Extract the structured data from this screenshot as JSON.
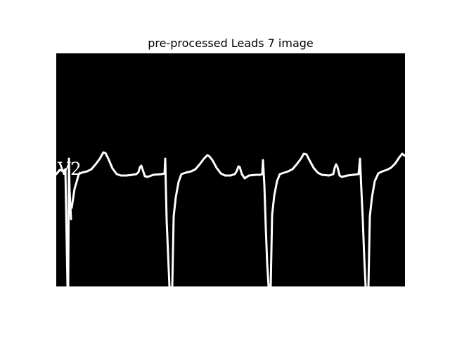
{
  "figure": {
    "title": "pre-processed Leads 7 image",
    "lead_label": "V2",
    "background_color": "#000000",
    "trace_color": "#ffffff"
  }
}
